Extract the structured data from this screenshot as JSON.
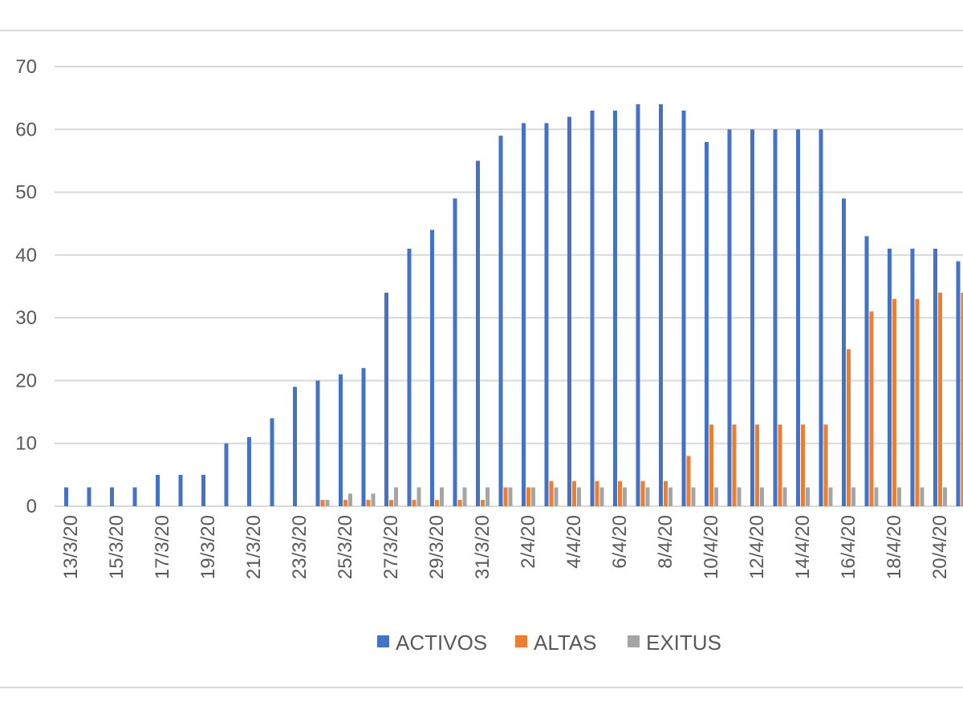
{
  "chart_data": {
    "type": "bar",
    "title": "",
    "xlabel": "",
    "ylabel": "",
    "ylim": [
      0,
      70
    ],
    "y_ticks": [
      "0",
      "10",
      "20",
      "30",
      "40",
      "50",
      "60",
      "70"
    ],
    "grid": true,
    "legend_position": "bottom",
    "categories": [
      "13/3/20",
      "14/3/20",
      "15/3/20",
      "16/3/20",
      "17/3/20",
      "18/3/20",
      "19/3/20",
      "20/3/20",
      "21/3/20",
      "22/3/20",
      "23/3/20",
      "24/3/20",
      "25/3/20",
      "26/3/20",
      "27/3/20",
      "28/3/20",
      "29/3/20",
      "30/3/20",
      "31/3/20",
      "1/4/20",
      "2/4/20",
      "3/4/20",
      "4/4/20",
      "5/4/20",
      "6/4/20",
      "7/4/20",
      "8/4/20",
      "9/4/20",
      "10/4/20",
      "11/4/20",
      "12/4/20",
      "13/4/20",
      "14/4/20",
      "15/4/20",
      "16/4/20",
      "17/4/20",
      "18/4/20",
      "19/4/20",
      "20/4/20",
      "21/4/20"
    ],
    "x_tick_labels": [
      "13/3/20",
      "15/3/20",
      "17/3/20",
      "19/3/20",
      "21/3/20",
      "23/3/20",
      "25/3/20",
      "27/3/20",
      "29/3/20",
      "31/3/20",
      "2/4/20",
      "4/4/20",
      "6/4/20",
      "8/4/20",
      "10/4/20",
      "12/4/20",
      "14/4/20",
      "16/4/20",
      "18/4/20",
      "20/4/20"
    ],
    "series": [
      {
        "name": "ACTIVOS",
        "color": "#4472C4",
        "values": [
          3,
          3,
          3,
          3,
          5,
          5,
          5,
          10,
          11,
          14,
          19,
          20,
          21,
          22,
          34,
          41,
          44,
          49,
          55,
          59,
          61,
          61,
          62,
          63,
          63,
          64,
          64,
          63,
          58,
          60,
          60,
          60,
          60,
          60,
          49,
          43,
          41,
          41,
          41,
          39
        ]
      },
      {
        "name": "ALTAS",
        "color": "#ED7D31",
        "values": [
          0,
          0,
          0,
          0,
          0,
          0,
          0,
          0,
          0,
          0,
          0,
          1,
          1,
          1,
          1,
          1,
          1,
          1,
          1,
          3,
          3,
          4,
          4,
          4,
          4,
          4,
          4,
          8,
          13,
          13,
          13,
          13,
          13,
          13,
          25,
          31,
          33,
          33,
          34,
          34
        ]
      },
      {
        "name": "EXITUS",
        "color": "#A5A5A5",
        "values": [
          0,
          0,
          0,
          0,
          0,
          0,
          0,
          0,
          0,
          0,
          0,
          1,
          2,
          2,
          3,
          3,
          3,
          3,
          3,
          3,
          3,
          3,
          3,
          3,
          3,
          3,
          3,
          3,
          3,
          3,
          3,
          3,
          3,
          3,
          3,
          3,
          3,
          3,
          3,
          3
        ]
      }
    ]
  }
}
